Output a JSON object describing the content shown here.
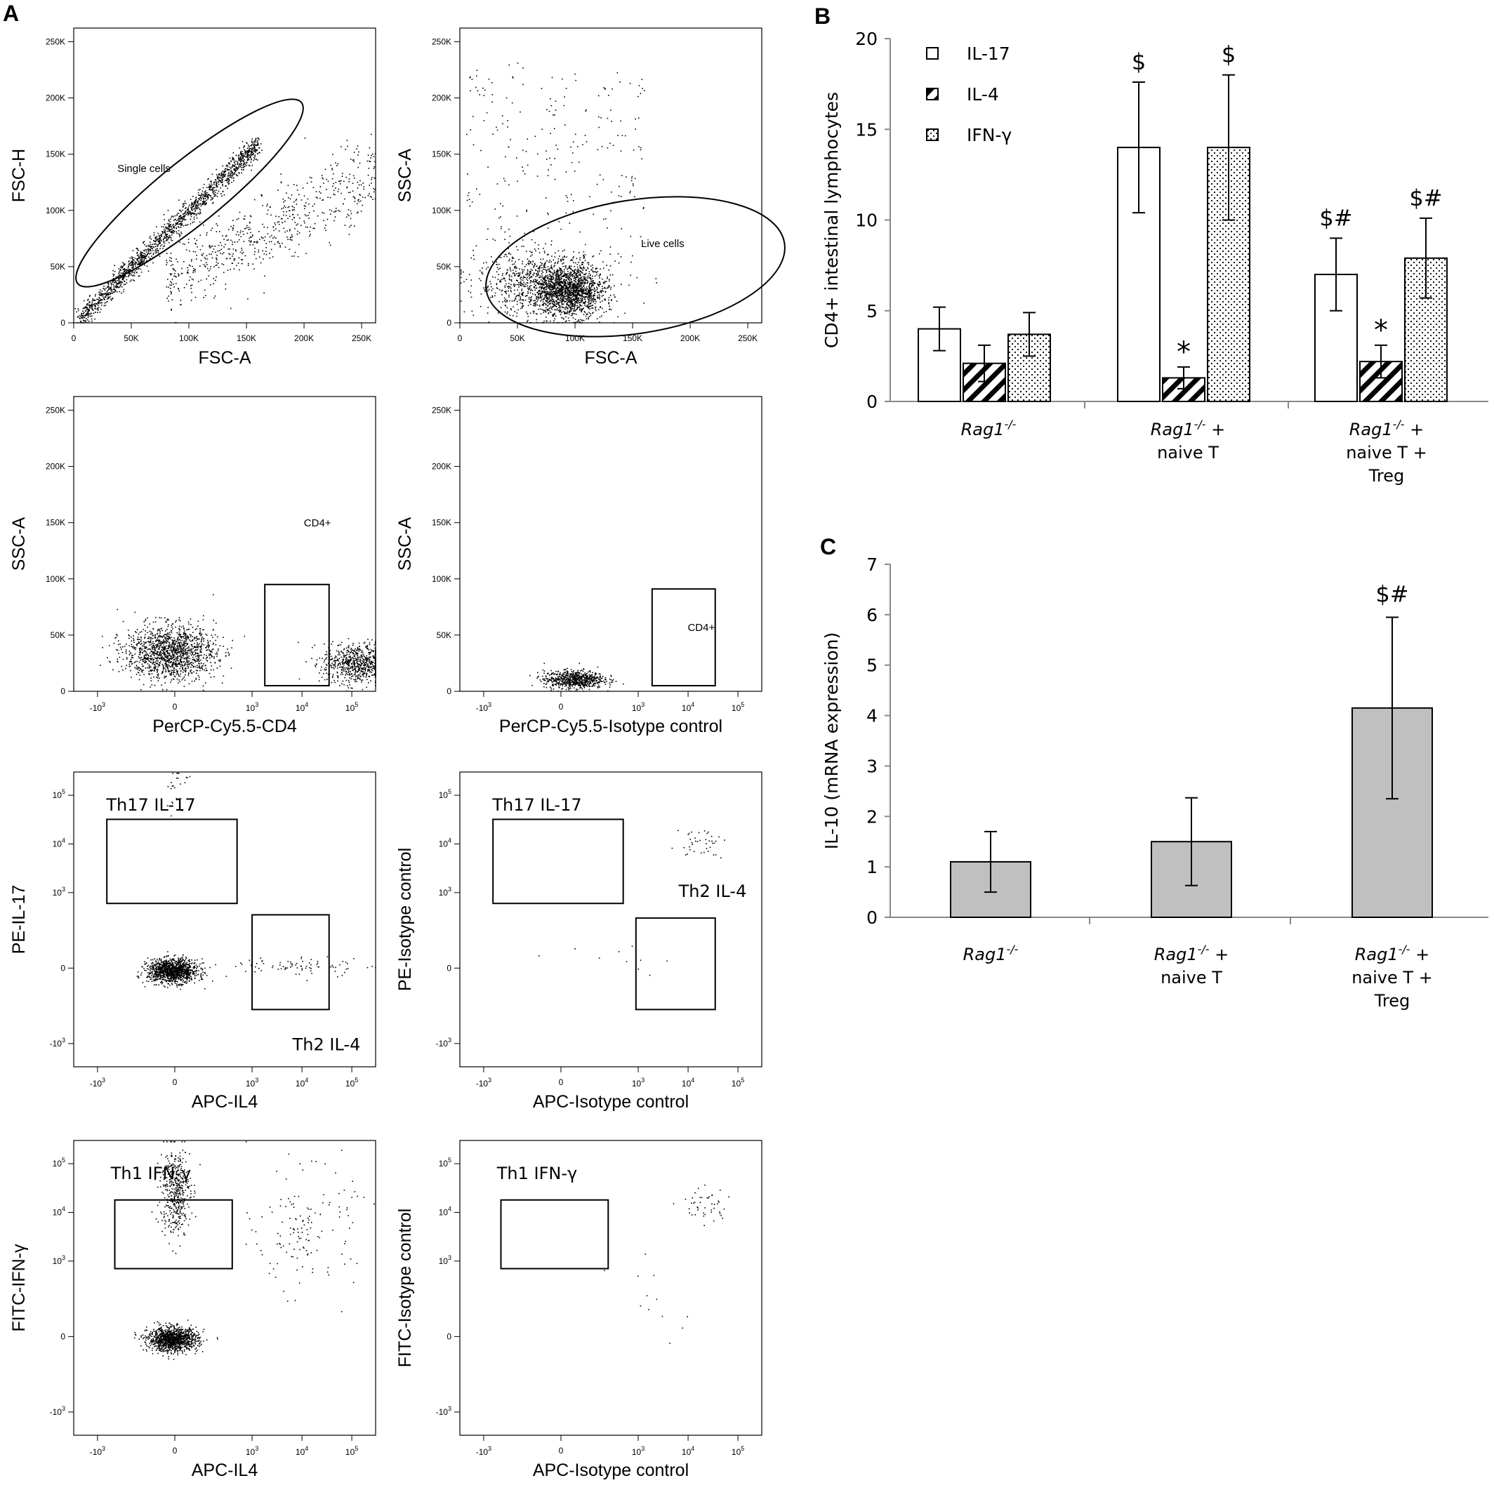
{
  "panel_letters": {
    "a": "A",
    "b": "B",
    "c": "C"
  },
  "chart_data": [
    {
      "id": "A1",
      "type": "scatter",
      "xlabel": "FSC-A",
      "ylabel": "FSC-H",
      "xticks": [
        "0",
        "50K",
        "100K",
        "150K",
        "200K",
        "250K"
      ],
      "yticks": [
        "0",
        "50K",
        "100K",
        "150K",
        "200K",
        "250K"
      ],
      "xlim": [
        0,
        262144
      ],
      "ylim": [
        0,
        262144
      ],
      "gate": {
        "shape": "ellipse",
        "label": "Single cells"
      },
      "populations": [
        {
          "name": "singlets",
          "line_from": [
            5000,
            4000
          ],
          "line_to": [
            160000,
            160000
          ],
          "spread": 5000,
          "n": 1600
        },
        {
          "name": "doublets",
          "x_range": [
            80000,
            262000
          ],
          "y_range": [
            60000,
            150000
          ],
          "n": 650
        }
      ]
    },
    {
      "id": "A2",
      "type": "scatter",
      "xlabel": "FSC-A",
      "ylabel": "SSC-A",
      "xticks": [
        "0",
        "50K",
        "100K",
        "150K",
        "200K",
        "250K"
      ],
      "yticks": [
        "0",
        "50K",
        "100K",
        "150K",
        "200K",
        "250K"
      ],
      "xlim": [
        0,
        262144
      ],
      "ylim": [
        0,
        262144
      ],
      "gate": {
        "shape": "ellipse",
        "label": "Live cells"
      },
      "populations": [
        {
          "name": "live-main",
          "center": [
            95000,
            28000
          ],
          "sd": [
            15000,
            11000
          ],
          "n": 1400
        },
        {
          "name": "live-broad",
          "center": [
            70000,
            35000
          ],
          "sd": [
            28000,
            14000
          ],
          "n": 900
        },
        {
          "name": "sparse",
          "x_range": [
            5000,
            160000
          ],
          "y_range": [
            40000,
            235000
          ],
          "n": 250
        }
      ]
    },
    {
      "id": "A3",
      "type": "scatter",
      "xlabel": "PerCP-Cy5.5-CD4",
      "ylabel": "SSC-A",
      "xticks": [
        "-10^3",
        "0",
        "10^3",
        "10^4",
        "10^5"
      ],
      "yticks": [
        "0",
        "50K",
        "100K",
        "150K",
        "200K",
        "250K"
      ],
      "xlim": [
        -3000,
        300000
      ],
      "ylim": [
        0,
        262144
      ],
      "gate": {
        "shape": "rect",
        "label": "CD4+",
        "x": [
          1800,
          35000
        ],
        "y": [
          5000,
          95000
        ]
      },
      "populations": [
        {
          "name": "cd4-neg",
          "center_log": [
            -0.1,
            35000
          ],
          "sd": [
            0.45,
            12000
          ],
          "n": 1400
        },
        {
          "name": "cd4-pos",
          "center_log": [
            3.65,
            25000
          ],
          "sd": [
            0.35,
            9000
          ],
          "n": 700
        }
      ]
    },
    {
      "id": "A4",
      "type": "scatter",
      "xlabel": "PerCP-Cy5.5-Isotype control",
      "ylabel": "SSC-A",
      "xticks": [
        "-10^3",
        "0",
        "10^3",
        "10^4",
        "10^5"
      ],
      "yticks": [
        "0",
        "50K",
        "100K",
        "150K",
        "200K",
        "250K"
      ],
      "xlim": [
        -3000,
        300000
      ],
      "ylim": [
        0,
        262144
      ],
      "gate": {
        "shape": "rect",
        "label": "CD4+",
        "x": [
          1900,
          35000
        ],
        "y": [
          5000,
          91000
        ]
      },
      "populations": [
        {
          "name": "iso",
          "center_log": [
            0.25,
            11000
          ],
          "sd": [
            0.3,
            4000
          ],
          "n": 700
        }
      ]
    },
    {
      "id": "A5",
      "type": "scatter",
      "xlabel": "APC-IL4",
      "ylabel": "PE-IL-17",
      "xticks": [
        "-10^3",
        "0",
        "10^3",
        "10^4",
        "10^5"
      ],
      "yticks": [
        "-10^3",
        "0",
        "10^3",
        "10^4",
        "10^5"
      ],
      "xlim": [
        -3000,
        300000
      ],
      "ylim": [
        -3000,
        300000
      ],
      "gates": [
        {
          "shape": "rect",
          "label": "Th17 IL-17",
          "x": [
            -650,
            500
          ],
          "y": [
            600,
            32000
          ]
        },
        {
          "shape": "rect",
          "label": "Th2 IL-4",
          "x": [
            1000,
            35000
          ],
          "y": [
            -200,
            350
          ]
        }
      ],
      "populations": [
        {
          "name": "double-neg",
          "center_log": [
            -0.05,
            -0.05
          ],
          "sd": [
            0.25,
            0.12
          ],
          "n": 1200
        },
        {
          "name": "il17",
          "center_log": [
            0.05,
            3.8
          ],
          "sd": [
            0.12,
            0.4
          ],
          "n": 25
        },
        {
          "name": "il4",
          "center_log": [
            2.5,
            0.05
          ],
          "sd": [
            0.7,
            0.1
          ],
          "n": 80
        }
      ]
    },
    {
      "id": "A6",
      "type": "scatter",
      "xlabel": "APC-Isotype control",
      "ylabel": "PE-Isotype control",
      "xticks": [
        "-10^3",
        "0",
        "10^3",
        "10^4",
        "10^5"
      ],
      "yticks": [
        "-10^3",
        "0",
        "10^3",
        "10^4",
        "10^5"
      ],
      "xlim": [
        -3000,
        300000
      ],
      "ylim": [
        -3000,
        300000
      ],
      "gates": [
        {
          "shape": "rect",
          "label": "Th17 IL-17",
          "x": [
            -650,
            500
          ],
          "y": [
            600,
            32000
          ]
        },
        {
          "shape": "rect",
          "label": "Th2 IL-4",
          "x": [
            900,
            35000
          ],
          "y": [
            -200,
            300
          ]
        }
      ],
      "populations": [
        {
          "name": "iso",
          "center_log": [
            2.8,
            2.6
          ],
          "sd": [
            0.25,
            0.15
          ],
          "n": 40
        },
        {
          "name": "iso-low",
          "center_log": [
            1.0,
            0.3
          ],
          "sd": [
            0.8,
            0.2
          ],
          "n": 10
        }
      ]
    },
    {
      "id": "A7",
      "type": "scatter",
      "xlabel": "APC-IL4",
      "ylabel": "FITC-IFN-γ",
      "xticks": [
        "-10^3",
        "0",
        "10^3",
        "10^4",
        "10^5"
      ],
      "yticks": [
        "-10^3",
        "0",
        "10^3",
        "10^4",
        "10^5"
      ],
      "xlim": [
        -3000,
        300000
      ],
      "ylim": [
        -3000,
        300000
      ],
      "gate": {
        "shape": "rect",
        "label": "Th1 IFN-γ",
        "x": [
          -450,
          400
        ],
        "y": [
          700,
          18000
        ]
      },
      "populations": [
        {
          "name": "double-neg",
          "center_log": [
            -0.05,
            -0.05
          ],
          "sd": [
            0.25,
            0.12
          ],
          "n": 1200
        },
        {
          "name": "ifng",
          "center_log": [
            0.0,
            3.0
          ],
          "sd": [
            0.15,
            0.45
          ],
          "n": 450
        },
        {
          "name": "spread",
          "center_log": [
            2.6,
            2.2
          ],
          "sd": [
            0.5,
            0.6
          ],
          "n": 140
        }
      ]
    },
    {
      "id": "A8",
      "type": "scatter",
      "xlabel": "APC-Isotype control",
      "ylabel": "FITC-Isotype control",
      "xticks": [
        "-10^3",
        "0",
        "10^3",
        "10^4",
        "10^5"
      ],
      "yticks": [
        "-10^3",
        "0",
        "10^3",
        "10^4",
        "10^5"
      ],
      "xlim": [
        -3000,
        300000
      ],
      "ylim": [
        -3000,
        300000
      ],
      "gate": {
        "shape": "rect",
        "label": "Th1 IFN-γ",
        "x": [
          -450,
          250
        ],
        "y": [
          700,
          18000
        ]
      },
      "populations": [
        {
          "name": "iso",
          "center_log": [
            2.85,
            2.7
          ],
          "sd": [
            0.25,
            0.2
          ],
          "n": 45
        },
        {
          "name": "iso-low",
          "center_log": [
            1.5,
            0.8
          ],
          "sd": [
            0.8,
            0.4
          ],
          "n": 12
        }
      ]
    },
    {
      "id": "B",
      "type": "bar",
      "ylabel": "CD4+ intestinal lymphocytes",
      "ylim": [
        0,
        20
      ],
      "yticks": [
        "0",
        "5",
        "10",
        "15",
        "20"
      ],
      "categories": [
        [
          "Rag1",
          "-/-",
          ""
        ],
        [
          "Rag1",
          "-/-",
          " +",
          "naive T"
        ],
        [
          "Rag1",
          "-/-",
          " +",
          "naive T +",
          "Treg"
        ]
      ],
      "series": [
        {
          "name": "IL-17",
          "values": [
            4.0,
            14.0,
            7.0
          ],
          "errors": [
            1.2,
            3.6,
            2.0
          ],
          "annotations": [
            "",
            "$",
            "$#"
          ]
        },
        {
          "name": "IL-4",
          "values": [
            2.1,
            1.3,
            2.2
          ],
          "errors": [
            1.0,
            0.6,
            0.9
          ],
          "annotations": [
            "",
            "*",
            "*"
          ]
        },
        {
          "name": "IFN-γ",
          "values": [
            3.7,
            14.0,
            7.9
          ],
          "errors": [
            1.2,
            4.0,
            2.2
          ],
          "annotations": [
            "",
            "$",
            "$#"
          ]
        }
      ],
      "legend": "top-left"
    },
    {
      "id": "C",
      "type": "bar",
      "ylabel": "IL-10 (mRNA expression)",
      "ylim": [
        0,
        7
      ],
      "yticks": [
        "0",
        "1",
        "2",
        "3",
        "4",
        "5",
        "6",
        "7"
      ],
      "categories": [
        [
          "Rag1",
          "-/-",
          ""
        ],
        [
          "Rag1",
          "-/-",
          " +",
          "naive T"
        ],
        [
          "Rag1",
          "-/-",
          " +",
          "naive T +",
          "Treg"
        ]
      ],
      "values": [
        1.1,
        1.5,
        4.15
      ],
      "errors": [
        0.6,
        0.87,
        1.8
      ],
      "annotations": [
        "",
        "",
        "$#"
      ],
      "color": "#c0c0c0"
    }
  ]
}
